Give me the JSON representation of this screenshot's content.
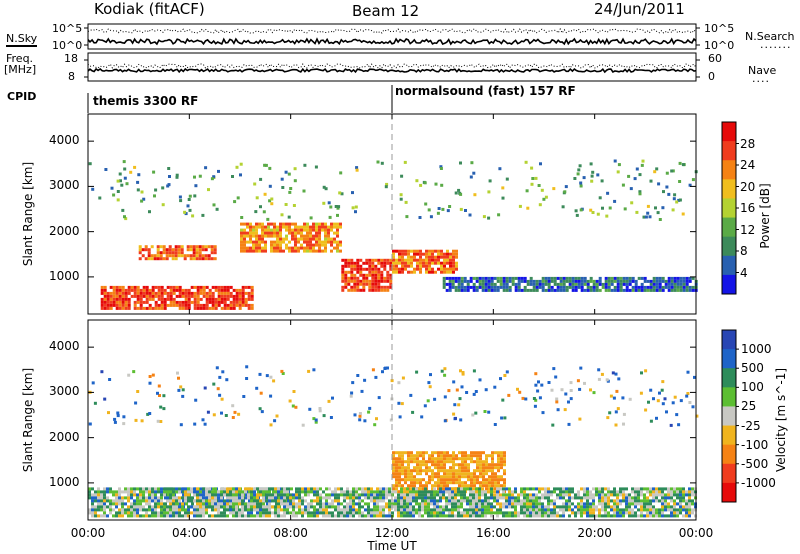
{
  "header": {
    "station": "Kodiak (fitACF)",
    "beam": "Beam 12",
    "date": "24/Jun/2011"
  },
  "status_panels": {
    "nsky_label": "N.Sky",
    "nsearch_label": "N.Search",
    "nsearch_marker": ".......",
    "freq_label_1": "Freq.",
    "freq_label_2": "[MHz]",
    "nave_label": "Nave",
    "nave_marker": "....",
    "cpid_label": "CPID",
    "nsky_ticks": [
      "10^5",
      "10^0"
    ],
    "nsearch_ticks": [
      "10^5",
      "10^0"
    ],
    "freq_ticks": [
      "18",
      "8"
    ],
    "nave_ticks": [
      "60",
      "0"
    ],
    "cpid_segments": [
      {
        "label": "themis 3300 RF",
        "start_hour": 0
      },
      {
        "label": "normalsound (fast) 157 RF",
        "start_hour": 12
      }
    ]
  },
  "chart_data": [
    {
      "type": "heatmap",
      "panel": "power",
      "ylabel": "Slant Range [km]",
      "yticks": [
        "1000",
        "2000",
        "3000",
        "4000"
      ],
      "ylim": [
        180,
        4600
      ],
      "x_range_hours": [
        0,
        24
      ],
      "colorbar_label": "Power [dB]",
      "colorbar_ticks": [
        "4",
        "8",
        "12",
        "16",
        "20",
        "24",
        "28"
      ],
      "colors": [
        "#1414e6",
        "#2860b0",
        "#3c8a5a",
        "#5aaa46",
        "#b4d232",
        "#f0be1e",
        "#f58214",
        "#f03c1e",
        "#e60a0a"
      ],
      "notable_echo_regions": [
        {
          "hours": [
            0.5,
            6.5
          ],
          "range_km": [
            300,
            800
          ],
          "power_db": 26
        },
        {
          "hours": [
            2.0,
            5.0
          ],
          "range_km": [
            1400,
            1700
          ],
          "power_db": 24
        },
        {
          "hours": [
            6.0,
            10.0
          ],
          "range_km": [
            1600,
            2200
          ],
          "power_db": 22
        },
        {
          "hours": [
            10.0,
            12.0
          ],
          "range_km": [
            700,
            1400
          ],
          "power_db": 26
        },
        {
          "hours": [
            12.0,
            14.5
          ],
          "range_km": [
            1100,
            1600
          ],
          "power_db": 24
        },
        {
          "hours": [
            14.0,
            24.0
          ],
          "range_km": [
            700,
            1000
          ],
          "power_db": 6
        }
      ]
    },
    {
      "type": "heatmap",
      "panel": "velocity",
      "ylabel": "Slant Range [km]",
      "yticks": [
        "1000",
        "2000",
        "3000",
        "4000"
      ],
      "ylim": [
        180,
        4600
      ],
      "x_range_hours": [
        0,
        24
      ],
      "xticks": [
        "00:00",
        "04:00",
        "08:00",
        "12:00",
        "16:00",
        "20:00",
        "00:00"
      ],
      "xlabel": "Time UT",
      "colorbar_label": "Velocity [m s^-1]",
      "colorbar_ticks": [
        "1000",
        "500",
        "100",
        "25",
        "-25",
        "-100",
        "-500",
        "-1000"
      ],
      "colors": [
        "#2846b4",
        "#1e64c8",
        "#2d8c5a",
        "#5cbe32",
        "#c8c8c3",
        "#f0b41e",
        "#f58214",
        "#f03c1e",
        "#e60a0a"
      ],
      "notable_echo_regions": [
        {
          "hours": [
            3.0,
            8.0
          ],
          "range_km": [
            500,
            900
          ],
          "velocity_ms": 100
        },
        {
          "hours": [
            12.0,
            16.5
          ],
          "range_km": [
            800,
            1700
          ],
          "velocity_ms": -300
        },
        {
          "hours": [
            0.0,
            24.0
          ],
          "range_km": [
            300,
            900
          ],
          "velocity_ms": 0
        }
      ]
    }
  ]
}
